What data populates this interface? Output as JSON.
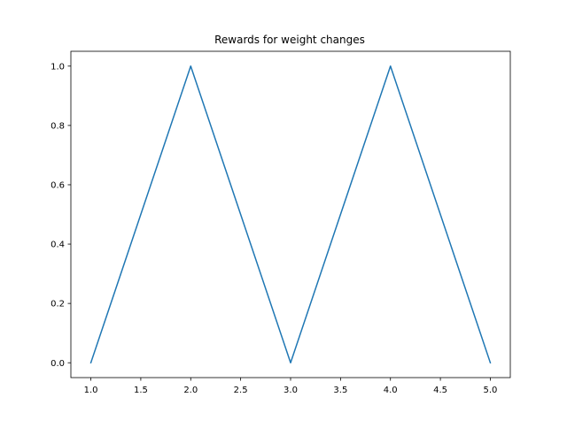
{
  "chart_data": {
    "type": "line",
    "title": "Rewards for weight changes",
    "xlabel": "",
    "ylabel": "",
    "x": [
      1,
      2,
      3,
      4,
      5
    ],
    "series": [
      {
        "values": [
          0,
          1,
          0,
          1,
          0
        ],
        "color": "#1f77b4"
      }
    ],
    "xlim": [
      0.8,
      5.2
    ],
    "ylim": [
      -0.05,
      1.05
    ],
    "xticks": [
      "1.0",
      "1.5",
      "2.0",
      "2.5",
      "3.0",
      "3.5",
      "4.0",
      "4.5",
      "5.0"
    ],
    "yticks": [
      "0.0",
      "0.2",
      "0.4",
      "0.6",
      "0.8",
      "1.0"
    ],
    "grid": false,
    "legend": "none"
  }
}
